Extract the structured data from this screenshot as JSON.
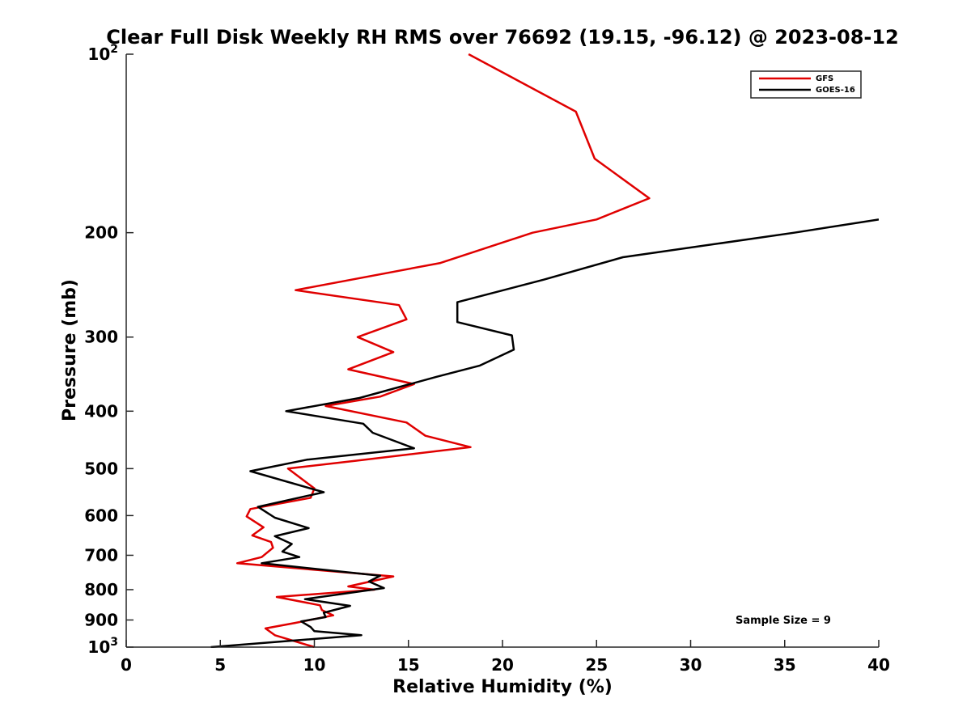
{
  "chart_data": {
    "type": "line",
    "title": "Clear Full Disk Weekly RH RMS over 76692 (19.15, -96.12) @ 2023-08-12",
    "xlabel": "Relative Humidity (%)",
    "ylabel": "Pressure (mb)",
    "xlim": [
      0,
      40
    ],
    "ylim": [
      100,
      1000
    ],
    "y_scale": "log",
    "y_reversed": true,
    "grid": false,
    "legend_position": "top-right",
    "x_ticks": [
      0,
      5,
      10,
      15,
      20,
      25,
      30,
      35,
      40
    ],
    "y_ticks": [
      {
        "value": 100,
        "base": "10",
        "exp": "2"
      },
      {
        "value": 200,
        "label": "200"
      },
      {
        "value": 300,
        "label": "300"
      },
      {
        "value": 400,
        "label": "400"
      },
      {
        "value": 500,
        "label": "500"
      },
      {
        "value": 600,
        "label": "600"
      },
      {
        "value": 700,
        "label": "700"
      },
      {
        "value": 800,
        "label": "800"
      },
      {
        "value": 900,
        "label": "900"
      },
      {
        "value": 1000,
        "base": "10",
        "exp": "3"
      }
    ],
    "annotation": "Sample Size = 9",
    "series": [
      {
        "name": "GFS",
        "color": "#e00000",
        "points": [
          [
            18.2,
            100
          ],
          [
            23.9,
            125
          ],
          [
            24.9,
            150
          ],
          [
            27.8,
            175
          ],
          [
            25.0,
            190
          ],
          [
            21.6,
            200
          ],
          [
            16.7,
            225
          ],
          [
            9.0,
            250
          ],
          [
            14.5,
            265
          ],
          [
            14.9,
            280
          ],
          [
            12.3,
            300
          ],
          [
            14.2,
            318
          ],
          [
            11.8,
            340
          ],
          [
            15.3,
            360
          ],
          [
            13.5,
            378
          ],
          [
            10.6,
            392
          ],
          [
            14.9,
            418
          ],
          [
            15.9,
            440
          ],
          [
            18.3,
            460
          ],
          [
            12.2,
            485
          ],
          [
            8.6,
            500
          ],
          [
            10.0,
            540
          ],
          [
            9.8,
            560
          ],
          [
            6.6,
            585
          ],
          [
            6.4,
            602
          ],
          [
            7.3,
            628
          ],
          [
            6.7,
            648
          ],
          [
            7.7,
            665
          ],
          [
            7.8,
            680
          ],
          [
            7.2,
            705
          ],
          [
            5.9,
            722
          ],
          [
            14.2,
            760
          ],
          [
            11.8,
            790
          ],
          [
            13.2,
            800
          ],
          [
            8.0,
            823
          ],
          [
            10.3,
            850
          ],
          [
            10.4,
            866
          ],
          [
            11.0,
            884
          ],
          [
            9.0,
            910
          ],
          [
            7.4,
            930
          ],
          [
            7.9,
            955
          ],
          [
            10.0,
            1000
          ]
        ]
      },
      {
        "name": "GOES-16",
        "color": "#000000",
        "points": [
          [
            40.0,
            190
          ],
          [
            35.5,
            200
          ],
          [
            26.4,
            220
          ],
          [
            22.2,
            240
          ],
          [
            17.6,
            262
          ],
          [
            17.6,
            283
          ],
          [
            20.5,
            298
          ],
          [
            20.6,
            315
          ],
          [
            18.8,
            335
          ],
          [
            16.5,
            350
          ],
          [
            12.4,
            380
          ],
          [
            8.5,
            400
          ],
          [
            12.6,
            420
          ],
          [
            13.1,
            435
          ],
          [
            15.3,
            462
          ],
          [
            9.6,
            483
          ],
          [
            6.6,
            505
          ],
          [
            10.5,
            548
          ],
          [
            7.0,
            580
          ],
          [
            7.9,
            605
          ],
          [
            9.7,
            630
          ],
          [
            7.9,
            650
          ],
          [
            8.8,
            670
          ],
          [
            8.3,
            690
          ],
          [
            9.2,
            705
          ],
          [
            7.2,
            722
          ],
          [
            13.5,
            758
          ],
          [
            12.9,
            775
          ],
          [
            13.7,
            795
          ],
          [
            9.5,
            830
          ],
          [
            11.9,
            852
          ],
          [
            10.5,
            875
          ],
          [
            10.6,
            890
          ],
          [
            9.3,
            905
          ],
          [
            9.8,
            925
          ],
          [
            10.0,
            940
          ],
          [
            12.5,
            955
          ],
          [
            4.5,
            1000
          ]
        ]
      }
    ]
  }
}
